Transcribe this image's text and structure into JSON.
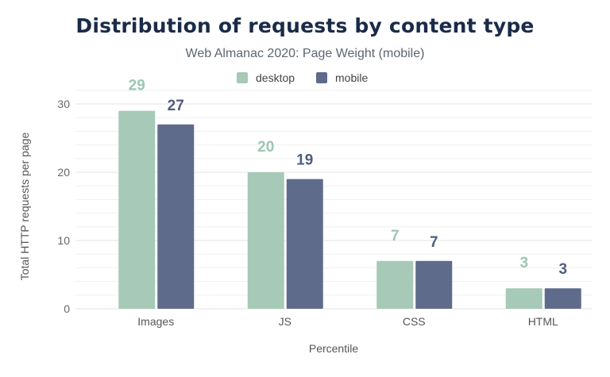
{
  "chart_data": {
    "type": "bar",
    "title": "Distribution of requests by content type",
    "subtitle": "Web Almanac 2020: Page Weight (mobile)",
    "xlabel": "Percentile",
    "ylabel": "Total HTTP requests per page",
    "categories": [
      "Images",
      "JS",
      "CSS",
      "HTML"
    ],
    "series": [
      {
        "name": "desktop",
        "values": [
          29,
          20,
          7,
          3
        ],
        "color": "#a7c9b7"
      },
      {
        "name": "mobile",
        "values": [
          27,
          19,
          7,
          3
        ],
        "color": "#5f6b8a"
      }
    ],
    "ylim": [
      0,
      30
    ],
    "yticks": [
      0,
      10,
      20,
      30
    ],
    "grid": true,
    "legend": "top-center",
    "title_color": "#1a2b49"
  }
}
